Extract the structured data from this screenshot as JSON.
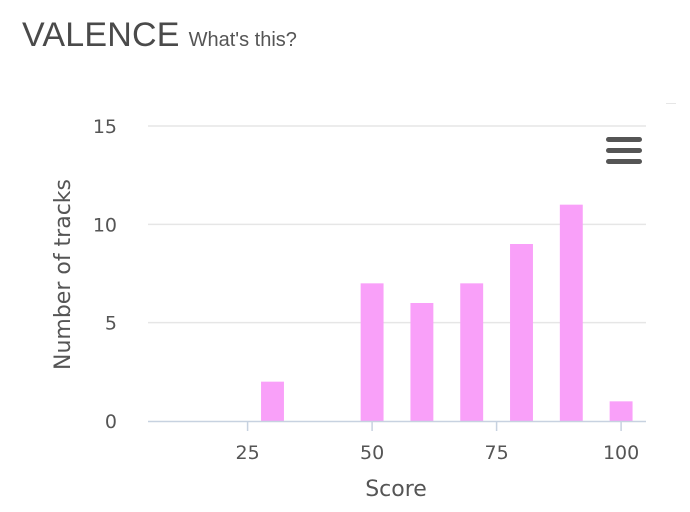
{
  "header": {
    "title": "VALENCE",
    "help_link": "What's this?"
  },
  "menu": {
    "icon": "hamburger-menu-icon"
  },
  "chart_data": {
    "type": "bar",
    "xlabel": "Score",
    "ylabel": "Number of tracks",
    "x_ticks": [
      25,
      50,
      75,
      100
    ],
    "y_ticks": [
      0,
      5,
      10,
      15
    ],
    "xlim": [
      5,
      105
    ],
    "ylim": [
      0,
      15
    ],
    "bar_color": "#f9a0f9",
    "bin_width": 10,
    "x": [
      30,
      50,
      60,
      70,
      80,
      90,
      100
    ],
    "values": [
      2,
      7,
      6,
      7,
      9,
      11,
      1
    ],
    "grid": true
  }
}
